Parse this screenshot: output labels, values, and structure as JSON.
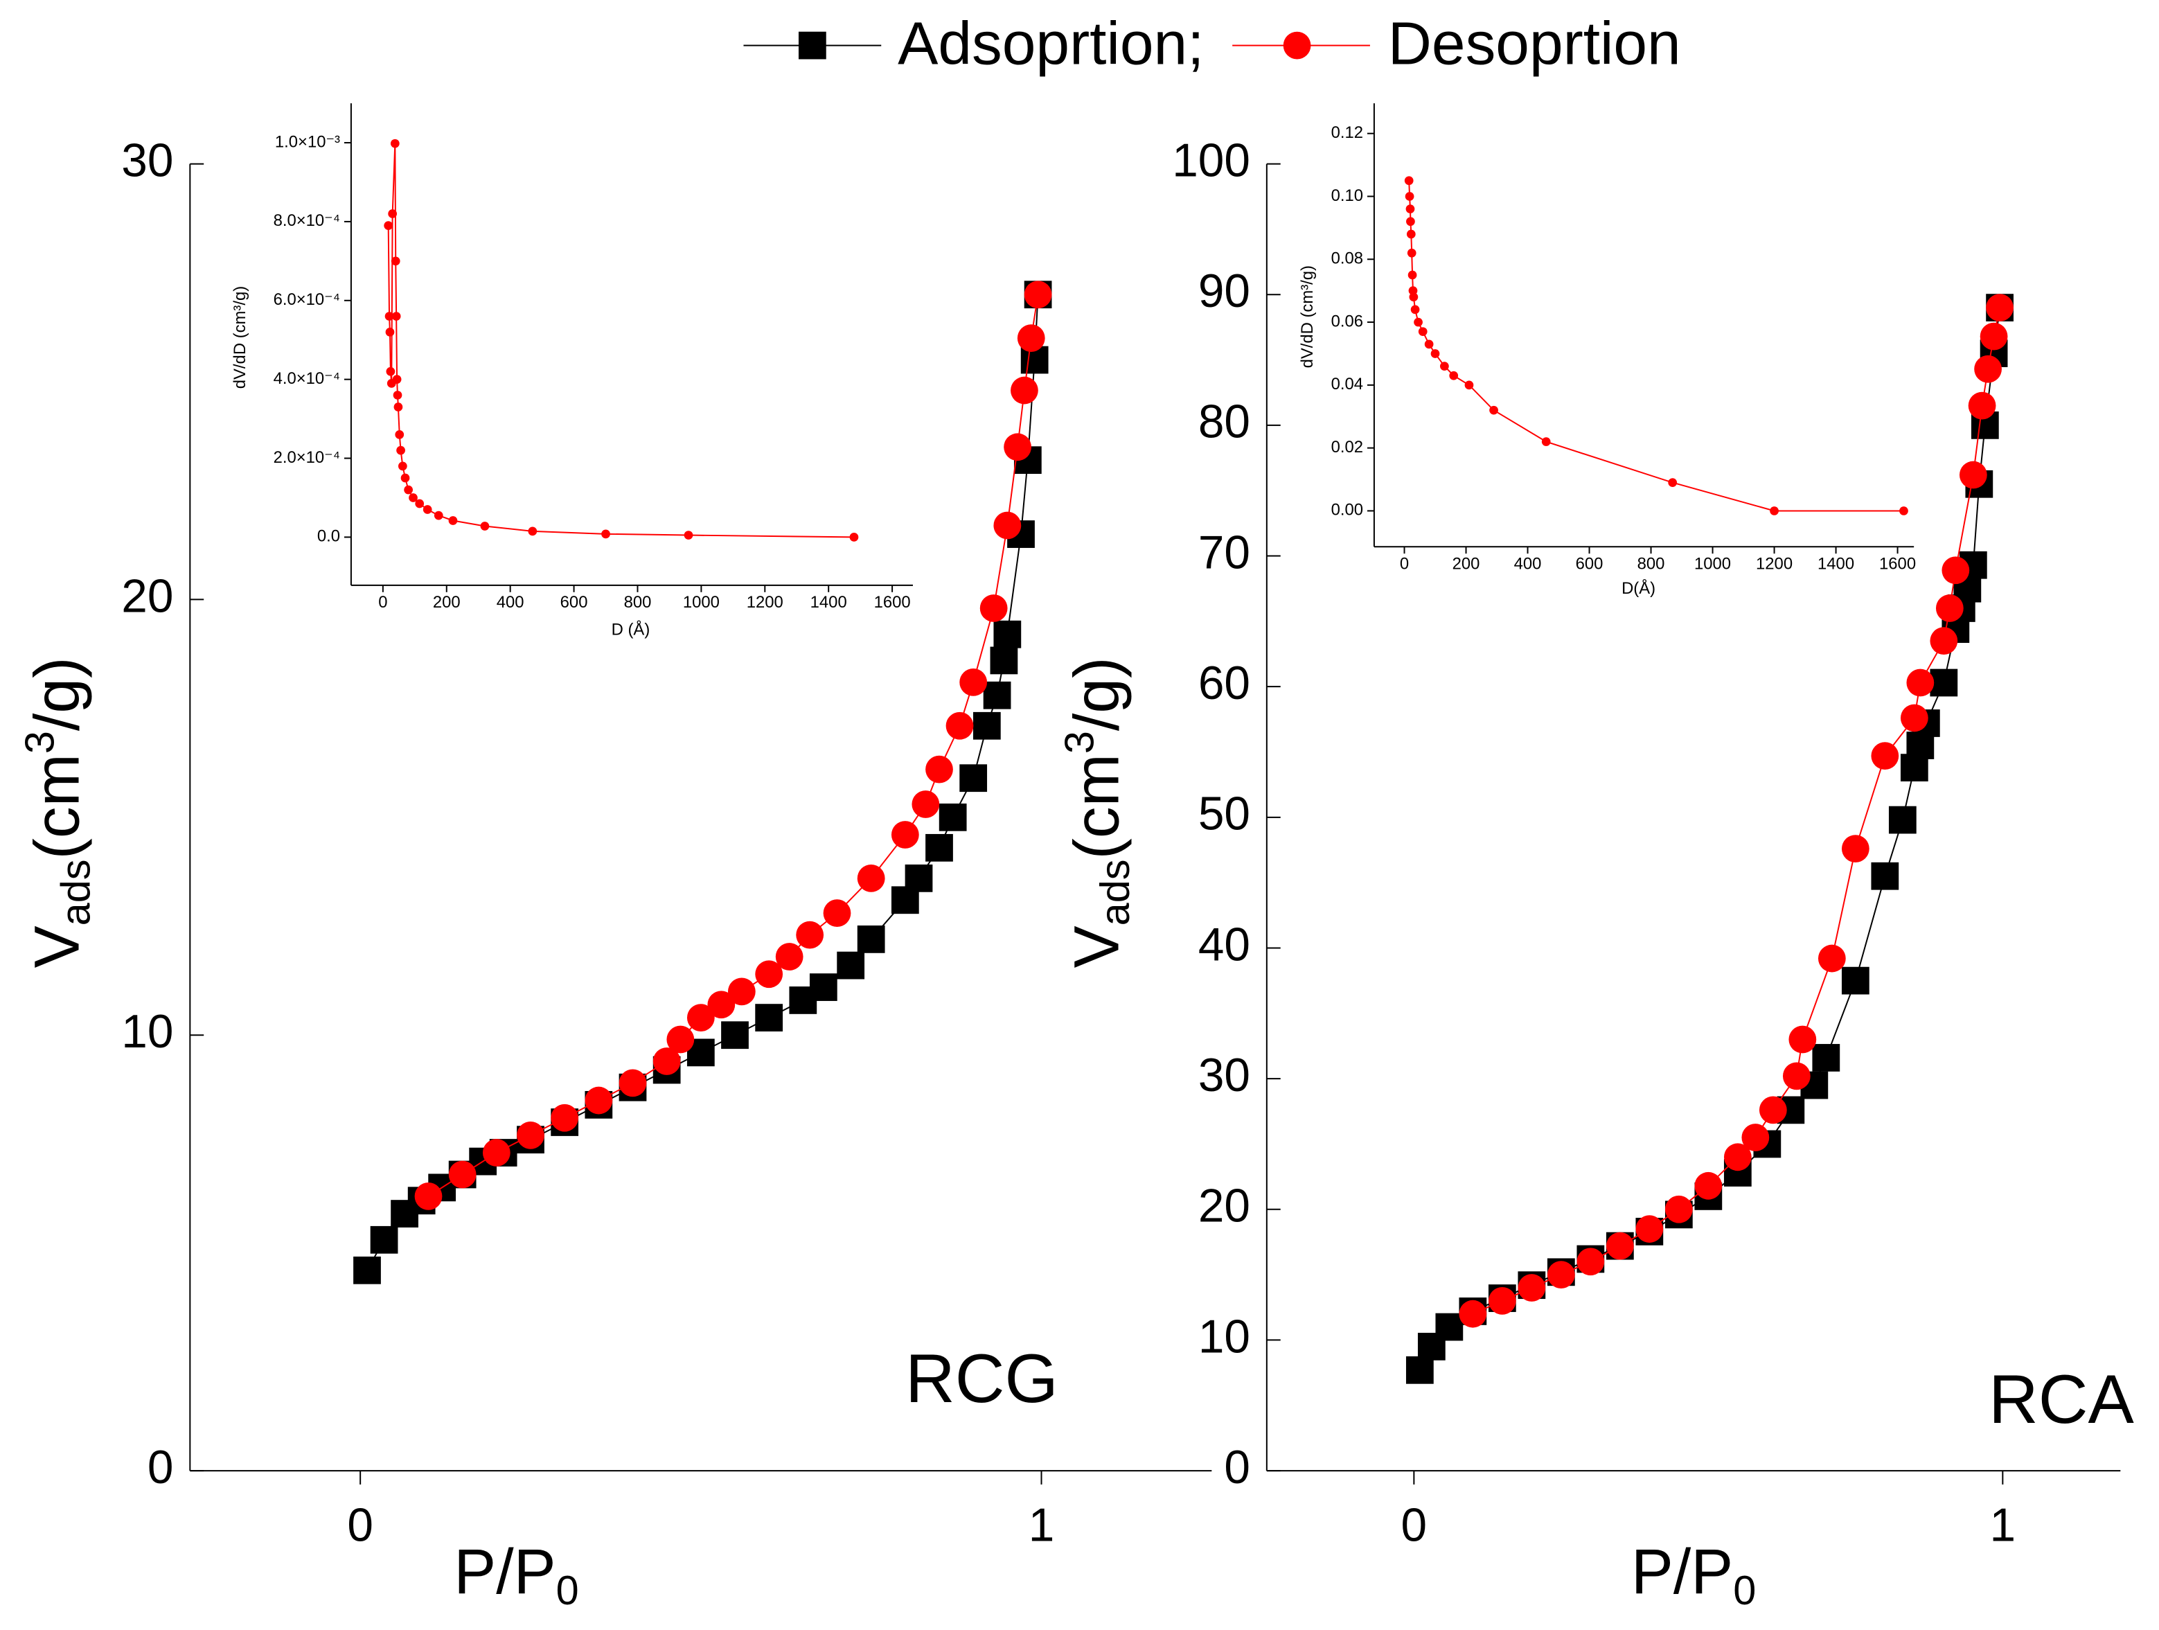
{
  "chart_data": [
    {
      "type": "line",
      "annotation": "RCG",
      "xlabel": [
        "P/P",
        "0"
      ],
      "ylabel": [
        "V",
        "ads",
        "(cm",
        "3",
        "/g)"
      ],
      "xlim": [
        -0.25,
        1.25
      ],
      "xticks": [
        0,
        1
      ],
      "ylim": [
        0,
        30
      ],
      "yticks": [
        0,
        10,
        20,
        30
      ],
      "series": [
        {
          "name": "Adsoprtion;",
          "color": "#000000",
          "marker": "square",
          "x": [
            0.01,
            0.035,
            0.065,
            0.09,
            0.12,
            0.15,
            0.18,
            0.21,
            0.25,
            0.3,
            0.35,
            0.4,
            0.45,
            0.5,
            0.55,
            0.6,
            0.65,
            0.68,
            0.72,
            0.75,
            0.8,
            0.82,
            0.85,
            0.87,
            0.9,
            0.92,
            0.935,
            0.945,
            0.95,
            0.97,
            0.98,
            0.99,
            0.995
          ],
          "values": [
            4.6,
            5.3,
            5.9,
            6.2,
            6.5,
            6.8,
            7.1,
            7.3,
            7.6,
            8.0,
            8.4,
            8.8,
            9.2,
            9.6,
            10.0,
            10.4,
            10.8,
            11.1,
            11.6,
            12.2,
            13.1,
            13.6,
            14.3,
            15.0,
            15.9,
            17.1,
            17.8,
            18.6,
            19.2,
            21.5,
            23.2,
            25.5,
            27.0
          ]
        },
        {
          "name": "Desoprtion",
          "color": "#ff0000",
          "marker": "circle",
          "x": [
            0.1,
            0.15,
            0.2,
            0.25,
            0.3,
            0.35,
            0.4,
            0.45,
            0.47,
            0.5,
            0.53,
            0.56,
            0.6,
            0.63,
            0.66,
            0.7,
            0.75,
            0.8,
            0.83,
            0.85,
            0.88,
            0.9,
            0.93,
            0.95,
            0.965,
            0.975,
            0.985,
            0.995
          ],
          "values": [
            6.3,
            6.8,
            7.3,
            7.7,
            8.1,
            8.5,
            8.9,
            9.4,
            9.9,
            10.4,
            10.7,
            11.0,
            11.4,
            11.8,
            12.3,
            12.8,
            13.6,
            14.6,
            15.3,
            16.1,
            17.1,
            18.1,
            19.8,
            21.7,
            23.5,
            24.8,
            26.0,
            27.0
          ]
        }
      ]
    },
    {
      "type": "line",
      "annotation": "RCA",
      "xlabel": [
        "P/P",
        "0"
      ],
      "ylabel": [
        "V",
        "ads",
        "(cm",
        "3",
        "/g)"
      ],
      "xlim": [
        -0.25,
        1.2
      ],
      "xticks": [
        0,
        1
      ],
      "ylim": [
        0,
        100
      ],
      "yticks": [
        0,
        10,
        20,
        30,
        40,
        50,
        60,
        70,
        80,
        90,
        100
      ],
      "series": [
        {
          "color": "#000000",
          "marker": "square",
          "x": [
            0.01,
            0.03,
            0.06,
            0.1,
            0.15,
            0.2,
            0.25,
            0.3,
            0.35,
            0.4,
            0.45,
            0.5,
            0.55,
            0.6,
            0.64,
            0.68,
            0.7,
            0.75,
            0.8,
            0.83,
            0.85,
            0.86,
            0.87,
            0.9,
            0.92,
            0.93,
            0.94,
            0.95,
            0.96,
            0.97,
            0.985,
            0.995
          ],
          "values": [
            7.7,
            9.5,
            11.0,
            12.2,
            13.2,
            14.2,
            15.2,
            16.2,
            17.2,
            18.3,
            19.6,
            21.0,
            22.8,
            25.0,
            27.6,
            29.5,
            31.6,
            37.5,
            45.5,
            49.8,
            53.8,
            55.5,
            57.2,
            60.3,
            64.4,
            66.0,
            67.5,
            69.3,
            75.5,
            80.0,
            85.5,
            89.0
          ]
        },
        {
          "color": "#ff0000",
          "marker": "circle",
          "x": [
            0.1,
            0.15,
            0.2,
            0.25,
            0.3,
            0.35,
            0.4,
            0.45,
            0.5,
            0.55,
            0.58,
            0.61,
            0.65,
            0.66,
            0.71,
            0.75,
            0.8,
            0.85,
            0.86,
            0.9,
            0.91,
            0.92,
            0.95,
            0.965,
            0.975,
            0.985,
            0.995
          ],
          "values": [
            12.0,
            13.0,
            14.0,
            15.0,
            16.0,
            17.2,
            18.5,
            20.0,
            21.8,
            24.0,
            25.5,
            27.6,
            30.2,
            33.0,
            39.2,
            47.6,
            54.7,
            57.6,
            60.3,
            63.5,
            66.0,
            68.9,
            76.2,
            81.5,
            84.3,
            86.8,
            89.0
          ]
        }
      ]
    },
    {
      "type": "line",
      "xlabel": "D (Å)",
      "ylabel": "dV/dD (cm³/g)",
      "xlim": [
        -100,
        1665
      ],
      "xticks": [
        0,
        200,
        400,
        600,
        800,
        1000,
        1200,
        1400,
        1600
      ],
      "ylim": [
        -0.000122,
        0.0011
      ],
      "yticks": [
        {
          "value": 0,
          "label": "0.0"
        },
        {
          "value": 0.0002,
          "label": "2.0×10⁻⁴"
        },
        {
          "value": 0.0004,
          "label": "4.0×10⁻⁴"
        },
        {
          "value": 0.0006,
          "label": "6.0×10⁻⁴"
        },
        {
          "value": 0.0008,
          "label": "8.0×10⁻⁴"
        },
        {
          "value": 0.001,
          "label": "1.0×10⁻³"
        }
      ],
      "series": [
        {
          "color": "#ff0000",
          "marker": "dot",
          "x": [
            17,
            20,
            22,
            24,
            27,
            30,
            38,
            40,
            42,
            44,
            46,
            48,
            52,
            56,
            62,
            70,
            80,
            95,
            115,
            140,
            175,
            220,
            320,
            470,
            700,
            960,
            1480
          ],
          "values": [
            0.00079,
            0.00056,
            0.00052,
            0.00042,
            0.00039,
            0.00082,
            0.000998,
            0.0007,
            0.00056,
            0.0004,
            0.00036,
            0.00033,
            0.00026,
            0.00022,
            0.00018,
            0.00015,
            0.00012,
            0.0001,
            8.5e-05,
            7e-05,
            5.5e-05,
            4.2e-05,
            2.8e-05,
            1.5e-05,
            8e-06,
            5e-06,
            0.0
          ]
        }
      ]
    },
    {
      "type": "line",
      "xlabel": "D(Å)",
      "ylabel": "dV/dD (cm³/g)",
      "xlim": [
        -98,
        1653
      ],
      "xticks": [
        0,
        200,
        400,
        600,
        800,
        1000,
        1200,
        1400,
        1600
      ],
      "ylim": [
        -0.0114,
        0.1296
      ],
      "yticks": [
        {
          "value": 0,
          "label": "0.00"
        },
        0.02,
        0.04,
        0.06,
        0.08,
        {
          "value": 0.1,
          "label": "0.10"
        },
        0.12
      ],
      "series": [
        {
          "color": "#ff0000",
          "marker": "dot",
          "x": [
            15,
            17,
            19,
            20,
            22,
            24,
            26,
            28,
            30,
            35,
            45,
            60,
            80,
            100,
            130,
            160,
            210,
            290,
            460,
            870,
            1200,
            1620
          ],
          "values": [
            0.105,
            0.1,
            0.096,
            0.092,
            0.088,
            0.082,
            0.075,
            0.07,
            0.068,
            0.064,
            0.06,
            0.057,
            0.053,
            0.05,
            0.046,
            0.043,
            0.04,
            0.032,
            0.022,
            0.009,
            0.0,
            0.0
          ]
        }
      ]
    }
  ]
}
